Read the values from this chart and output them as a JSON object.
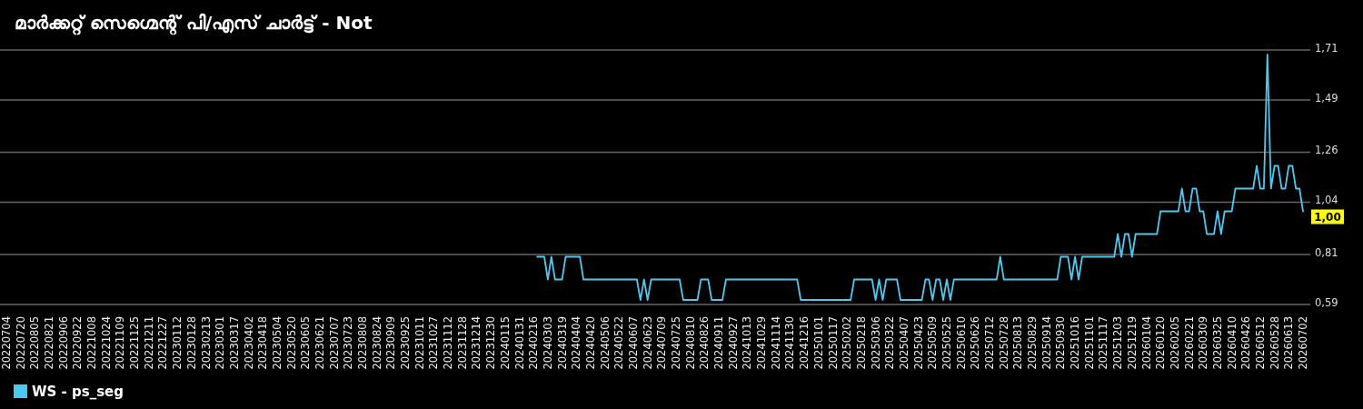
{
  "chart_data": {
    "type": "line",
    "title": "മാർക്കറ്റ് സെഗ്മെന്റ് പി/എസ് ചാർട്ട് - Not",
    "categories": [
      "20220704",
      null,
      null,
      null,
      "20220720",
      null,
      null,
      null,
      "20220805",
      null,
      null,
      null,
      "20220821",
      null,
      null,
      null,
      "20220906",
      null,
      null,
      null,
      "20220922",
      null,
      null,
      null,
      "20221008",
      null,
      null,
      null,
      "20221024",
      null,
      null,
      null,
      "20221109",
      null,
      null,
      null,
      "20221125",
      null,
      null,
      null,
      "20221211",
      null,
      null,
      null,
      "20221227",
      null,
      null,
      null,
      "20230112",
      null,
      null,
      null,
      "20230128",
      null,
      null,
      null,
      "20230213",
      null,
      null,
      null,
      "20230301",
      null,
      null,
      null,
      "20230317",
      null,
      null,
      null,
      "20230402",
      null,
      null,
      null,
      "20230418",
      null,
      null,
      null,
      "20230504",
      null,
      null,
      null,
      "20230520",
      null,
      null,
      null,
      "20230605",
      null,
      null,
      null,
      "20230621",
      null,
      null,
      null,
      "20230707",
      null,
      null,
      null,
      "20230723",
      null,
      null,
      null,
      "20230808",
      null,
      null,
      null,
      "20230824",
      null,
      null,
      null,
      "20230909",
      null,
      null,
      null,
      "20230925",
      null,
      null,
      null,
      "20231011",
      null,
      null,
      null,
      "20231027",
      null,
      null,
      null,
      "20231112",
      null,
      null,
      null,
      "20231128",
      null,
      null,
      null,
      "20231214",
      null,
      null,
      null,
      "20231230",
      null,
      null,
      null,
      "20240115",
      null,
      null,
      null,
      "20240131",
      null,
      null,
      null,
      "20240216",
      null,
      null,
      null,
      "20240303",
      null,
      null,
      null,
      "20240319",
      null,
      null,
      null,
      "20240404",
      null,
      null,
      null,
      "20240420",
      null,
      null,
      null,
      "20240506",
      null,
      null,
      null,
      "20240522",
      null,
      null,
      null,
      "20240607",
      null,
      null,
      null,
      "20240623",
      null,
      null,
      null,
      "20240709",
      null,
      null,
      null,
      "20240725",
      null,
      null,
      null,
      "20240810",
      null,
      null,
      null,
      "20240826",
      null,
      null,
      null,
      "20240911",
      null,
      null,
      null,
      "20240927",
      null,
      null,
      null,
      "20241013",
      null,
      null,
      null,
      "20241029",
      null,
      null,
      null,
      "20241114",
      null,
      null,
      null,
      "20241130",
      null,
      null,
      null,
      "20241216",
      null,
      null,
      null,
      "20250101",
      null,
      null,
      null,
      "20250117",
      null,
      null,
      null,
      "20250202",
      null,
      null,
      null,
      "20250218",
      null,
      null,
      null,
      "20250306",
      null,
      null,
      null,
      "20250322",
      null,
      null,
      null,
      "20250407",
      null,
      null,
      null,
      "20250423",
      null,
      null,
      null,
      "20250509",
      null,
      null,
      null,
      "20250525",
      null,
      null,
      null,
      "20250610",
      null,
      null,
      null,
      "20250626",
      null,
      null,
      null,
      "20250712",
      null,
      null,
      null,
      "20250728",
      null,
      null,
      null,
      "20250813",
      null,
      null,
      null,
      "20250829",
      null,
      null,
      null,
      "20250914",
      null,
      null,
      null,
      "20250930",
      null,
      null,
      null,
      "20251016",
      null,
      null,
      null,
      "20251101",
      null,
      null,
      null,
      "20251117",
      null,
      null,
      null,
      "20251203",
      null,
      null,
      null,
      "20251219",
      null,
      null,
      null,
      "20260104",
      null,
      null,
      null,
      "20260120",
      null,
      null,
      null,
      "20260205",
      null,
      null,
      null,
      "20260221",
      null,
      null,
      null,
      "20260309",
      null,
      null,
      null,
      "20260325",
      null,
      null,
      null,
      "20260410",
      null,
      null,
      null,
      "20260426",
      null,
      null,
      null,
      "20260512",
      null,
      null,
      null,
      "20260528",
      null,
      null,
      null,
      "20260613",
      null,
      null,
      null,
      "20260702"
    ],
    "series": [
      {
        "name": "WS - ps_seg",
        "color": "#4fc8f0",
        "values": [
          null,
          null,
          null,
          null,
          null,
          null,
          null,
          null,
          null,
          null,
          null,
          null,
          null,
          null,
          null,
          null,
          null,
          null,
          null,
          null,
          null,
          null,
          null,
          null,
          null,
          null,
          null,
          null,
          null,
          null,
          null,
          null,
          null,
          null,
          null,
          null,
          null,
          null,
          null,
          null,
          null,
          null,
          null,
          null,
          null,
          null,
          null,
          null,
          null,
          null,
          null,
          null,
          null,
          null,
          null,
          null,
          null,
          null,
          null,
          null,
          null,
          null,
          null,
          null,
          null,
          null,
          null,
          null,
          null,
          null,
          null,
          null,
          null,
          null,
          null,
          null,
          null,
          null,
          null,
          null,
          null,
          null,
          null,
          null,
          null,
          null,
          null,
          null,
          null,
          null,
          null,
          null,
          null,
          null,
          null,
          null,
          null,
          null,
          null,
          null,
          null,
          null,
          null,
          null,
          null,
          null,
          null,
          null,
          null,
          null,
          null,
          null,
          null,
          null,
          null,
          null,
          null,
          null,
          null,
          null,
          null,
          null,
          null,
          null,
          null,
          null,
          null,
          null,
          null,
          null,
          null,
          null,
          null,
          null,
          null,
          null,
          null,
          null,
          null,
          null,
          null,
          null,
          null,
          null,
          null,
          null,
          null,
          null,
          null,
          0.8,
          0.8,
          0.8,
          0.7,
          0.8,
          0.7,
          0.7,
          0.7,
          0.8,
          0.8,
          0.8,
          0.8,
          0.8,
          0.7,
          0.7,
          0.7,
          0.7,
          0.7,
          0.7,
          0.7,
          0.7,
          0.7,
          0.7,
          0.7,
          0.7,
          0.7,
          0.7,
          0.7,
          0.7,
          0.61,
          0.7,
          0.61,
          0.7,
          0.7,
          0.7,
          0.7,
          0.7,
          0.7,
          0.7,
          0.7,
          0.7,
          0.61,
          0.61,
          0.61,
          0.61,
          0.61,
          0.7,
          0.7,
          0.7,
          0.61,
          0.61,
          0.61,
          0.61,
          0.7,
          0.7,
          0.7,
          0.7,
          0.7,
          0.7,
          0.7,
          0.7,
          0.7,
          0.7,
          0.7,
          0.7,
          0.7,
          0.7,
          0.7,
          0.7,
          0.7,
          0.7,
          0.7,
          0.7,
          0.7,
          0.61,
          0.61,
          0.61,
          0.61,
          0.61,
          0.61,
          0.61,
          0.61,
          0.61,
          0.61,
          0.61,
          0.61,
          0.61,
          0.61,
          0.61,
          0.7,
          0.7,
          0.7,
          0.7,
          0.7,
          0.7,
          0.61,
          0.7,
          0.61,
          0.7,
          0.7,
          0.7,
          0.7,
          0.61,
          0.61,
          0.61,
          0.61,
          0.61,
          0.61,
          0.61,
          0.7,
          0.7,
          0.61,
          0.7,
          0.7,
          0.61,
          0.7,
          0.61,
          0.7,
          0.7,
          0.7,
          0.7,
          0.7,
          0.7,
          0.7,
          0.7,
          0.7,
          0.7,
          0.7,
          0.7,
          0.7,
          0.8,
          0.7,
          0.7,
          0.7,
          0.7,
          0.7,
          0.7,
          0.7,
          0.7,
          0.7,
          0.7,
          0.7,
          0.7,
          0.7,
          0.7,
          0.7,
          0.7,
          0.8,
          0.8,
          0.8,
          0.7,
          0.8,
          0.7,
          0.8,
          0.8,
          0.8,
          0.8,
          0.8,
          0.8,
          0.8,
          0.8,
          0.8,
          0.8,
          0.9,
          0.8,
          0.9,
          0.9,
          0.8,
          0.9,
          0.9,
          0.9,
          0.9,
          0.9,
          0.9,
          0.9,
          1.0,
          1.0,
          1.0,
          1.0,
          1.0,
          1.0,
          1.1,
          1.0,
          1.0,
          1.1,
          1.1,
          1.0,
          1.0,
          0.9,
          0.9,
          0.9,
          1.0,
          0.9,
          1.0,
          1.0,
          1.0,
          1.1,
          1.1,
          1.1,
          1.1,
          1.1,
          1.1,
          1.2,
          1.1,
          1.1,
          1.69,
          1.1,
          1.2,
          1.2,
          1.1,
          1.1,
          1.2,
          1.2,
          1.1,
          1.1,
          1.0
        ]
      }
    ],
    "ylim": [
      0.59,
      1.71
    ],
    "yticks": [
      {
        "value": 0.59,
        "label": "0,59"
      },
      {
        "value": 0.81,
        "label": "0,81"
      },
      {
        "value": 1.04,
        "label": "1,04"
      },
      {
        "value": 1.26,
        "label": "1,26"
      },
      {
        "value": 1.49,
        "label": "1,49"
      },
      {
        "value": 1.71,
        "label": "1,71"
      }
    ],
    "grid": "y",
    "legend": "bottom left",
    "annotations": [
      {
        "text": "1,00",
        "x": "20260702",
        "y": 1.0
      }
    ]
  }
}
